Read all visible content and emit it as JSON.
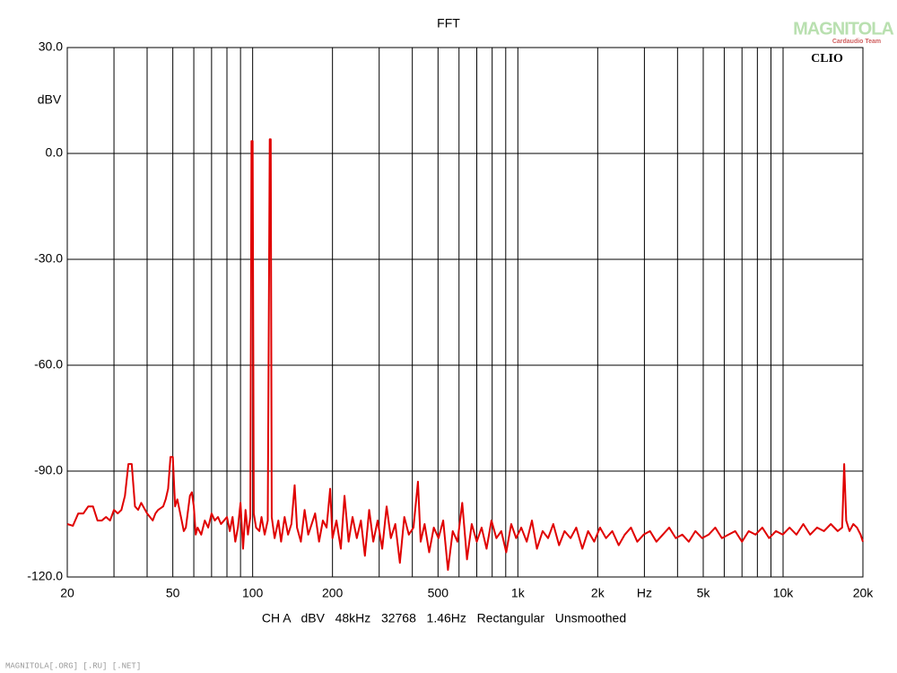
{
  "chart_data": {
    "type": "line",
    "title": "FFT",
    "ylabel": "dBV",
    "xlabel": "CH A   dBV   48kHz   32768   1.46Hz   Rectangular   Unsmoothed",
    "brand": "CLIO",
    "watermark": "MAGNITOLA",
    "watermark_sub": "Cardaudio Team",
    "footer": "MAGNITOLA[.ORG] [.RU] [.NET]",
    "xscale": "log",
    "grid": true,
    "xlim": [
      20,
      20000
    ],
    "ylim": [
      -120,
      30
    ],
    "xticks": [
      20,
      50,
      100,
      200,
      500,
      {
        "value": 1000,
        "label": "1k"
      },
      {
        "value": 2000,
        "label": "2k"
      },
      {
        "value": 3000,
        "label": "Hz"
      },
      {
        "value": 5000,
        "label": "5k"
      },
      {
        "value": 10000,
        "label": "10k"
      },
      {
        "value": 20000,
        "label": "20k"
      }
    ],
    "x_minor_ticks": [
      30,
      40,
      60,
      70,
      80,
      90,
      300,
      400,
      600,
      700,
      800,
      900,
      4000,
      6000,
      7000,
      8000,
      9000
    ],
    "yticks": [
      {
        "value": -120,
        "label": "-120.0"
      },
      {
        "value": -90,
        "label": "-90.0"
      },
      {
        "value": -60,
        "label": "-60.0"
      },
      {
        "value": -30,
        "label": "-30.0"
      },
      {
        "value": 0,
        "label": "0.0"
      },
      {
        "value": 30,
        "label": "30.0"
      }
    ],
    "x": [
      20,
      21,
      22,
      23,
      24,
      25,
      26,
      27,
      28,
      29,
      30,
      31,
      32,
      33,
      34,
      35,
      36,
      37,
      38,
      40,
      41,
      42,
      43,
      44,
      46,
      47,
      48,
      49,
      50,
      51,
      52,
      54,
      55,
      56,
      58,
      59,
      60,
      61,
      62,
      64,
      66,
      68,
      70,
      72,
      74,
      76,
      78,
      80,
      82,
      84,
      86,
      88,
      90,
      92,
      94,
      96,
      98,
      99,
      100,
      101,
      103,
      106,
      108,
      111,
      114,
      116,
      117,
      118,
      121,
      125,
      128,
      132,
      136,
      140,
      144,
      147,
      152,
      157,
      162,
      167,
      172,
      178,
      184,
      190,
      196,
      200,
      207,
      215,
      222,
      230,
      238,
      247,
      256,
      265,
      275,
      285,
      296,
      308,
      320,
      332,
      345,
      359,
      373,
      388,
      404,
      420,
      430,
      445,
      463,
      482,
      502,
      523,
      545,
      568,
      592,
      617,
      643,
      670,
      700,
      730,
      762,
      795,
      830,
      866,
      904,
      944,
      985,
      1030,
      1080,
      1130,
      1180,
      1240,
      1300,
      1360,
      1430,
      1500,
      1580,
      1660,
      1750,
      1840,
      1940,
      2040,
      2150,
      2270,
      2400,
      2530,
      2670,
      2820,
      2980,
      3150,
      3330,
      3520,
      3720,
      3940,
      4170,
      4410,
      4670,
      4950,
      5240,
      5550,
      5880,
      6230,
      6600,
      7000,
      7420,
      7870,
      8350,
      8860,
      9400,
      9970,
      10580,
      11230,
      11920,
      12650,
      13430,
      14260,
      15140,
      16070,
      16700,
      17000,
      17300,
      17800,
      18400,
      19000,
      19600,
      20000
    ],
    "series": [
      {
        "name": "CH A",
        "color": "#e00000",
        "values": [
          -105,
          -105.5,
          -102,
          -102,
          -100,
          -100,
          -104,
          -104,
          -103,
          -104,
          -101,
          -102,
          -101,
          -97,
          -88,
          -88,
          -100,
          -101,
          -99,
          -102,
          -103,
          -104,
          -102,
          -101,
          -100,
          -98,
          -95,
          -86,
          -86,
          -100,
          -98,
          -104,
          -107,
          -106,
          -97,
          -96,
          -100,
          -108,
          -106,
          -108,
          -104,
          -106,
          -102,
          -104,
          -103,
          -105,
          -104,
          -103,
          -107,
          -103,
          -110,
          -106,
          -99,
          -112,
          -101,
          -108,
          -103,
          3.5,
          3.5,
          -102,
          -106,
          -107,
          -103,
          -108,
          -104,
          4,
          4,
          -103,
          -109,
          -104,
          -110,
          -103,
          -108,
          -105,
          -94,
          -106,
          -110,
          -101,
          -108,
          -105,
          -102,
          -110,
          -104,
          -106,
          -95,
          -109,
          -104,
          -112,
          -97,
          -110,
          -103,
          -109,
          -104,
          -114,
          -101,
          -110,
          -104,
          -112,
          -100,
          -109,
          -105,
          -116,
          -103,
          -108,
          -106,
          -93,
          -110,
          -105,
          -113,
          -106,
          -109,
          -104,
          -118,
          -107,
          -110,
          -99,
          -115,
          -105,
          -110,
          -106,
          -112,
          -104,
          -109,
          -107,
          -113,
          -105,
          -109,
          -106,
          -110,
          -104,
          -112,
          -107,
          -109,
          -105,
          -111,
          -107,
          -109,
          -106,
          -112,
          -107,
          -110,
          -106,
          -109,
          -107,
          -111,
          -108,
          -106,
          -110,
          -108,
          -107,
          -110,
          -108,
          -106,
          -109,
          -108,
          -110,
          -107,
          -109,
          -108,
          -106,
          -109,
          -108,
          -107,
          -110,
          -107,
          -108,
          -106,
          -109,
          -107,
          -108,
          -106,
          -108,
          -105,
          -108,
          -106,
          -107,
          -105,
          -107,
          -106,
          -88,
          -104,
          -107,
          -105,
          -106,
          -108,
          -110
        ]
      }
    ]
  }
}
